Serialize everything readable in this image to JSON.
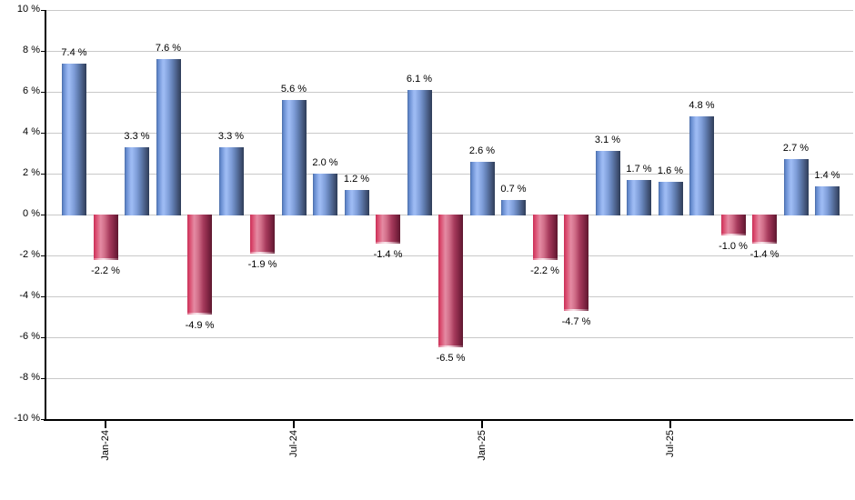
{
  "chart_data": {
    "type": "bar",
    "title": "",
    "xlabel": "",
    "ylabel": "",
    "unit": "%",
    "ylim": [
      -10,
      10
    ],
    "ytick_step": 2,
    "grid": true,
    "legend": null,
    "y_tick_values": [
      10,
      8,
      6,
      4,
      2,
      0,
      -2,
      -4,
      -6,
      -8,
      -10
    ],
    "y_tick_labels": [
      "10 %",
      "8 %",
      "6 %",
      "4 %",
      "2 %",
      "0 %",
      "-2 %",
      "-4 %",
      "-6 %",
      "-8 %",
      "-10 %"
    ],
    "values": [
      7.4,
      -2.2,
      3.3,
      7.6,
      -4.9,
      3.3,
      -1.9,
      5.6,
      2.0,
      1.2,
      -1.4,
      6.1,
      -6.5,
      2.6,
      0.7,
      -2.2,
      -4.7,
      3.1,
      1.7,
      1.6,
      4.8,
      -1.0,
      -1.4,
      2.7,
      1.4
    ],
    "bar_labels": [
      "7.4 %",
      "-2.2 %",
      "3.3 %",
      "7.6 %",
      "-4.9 %",
      "3.3 %",
      "-1.9 %",
      "5.6 %",
      "2.0 %",
      "1.2 %",
      "-1.4 %",
      "6.1 %",
      "-6.5 %",
      "2.6 %",
      "0.7 %",
      "-2.2 %",
      "-4.7 %",
      "3.1 %",
      "1.7 %",
      "1.6 %",
      "4.8 %",
      "-1.0 %",
      "-1.4 %",
      "2.7 %",
      "1.4 %"
    ],
    "x_ticks": [
      {
        "bar_index": 1,
        "label": "Jan-24"
      },
      {
        "bar_index": 7,
        "label": "Jul-24"
      },
      {
        "bar_index": 13,
        "label": "Jan-25"
      },
      {
        "bar_index": 19,
        "label": "Jul-25"
      }
    ],
    "colors": {
      "positive_bar": "#7da0dc",
      "negative_bar": "#c43b62",
      "gridline": "#c9c9c9",
      "axis": "#000000",
      "label_text": "#000000",
      "background": "#ffffff"
    }
  }
}
